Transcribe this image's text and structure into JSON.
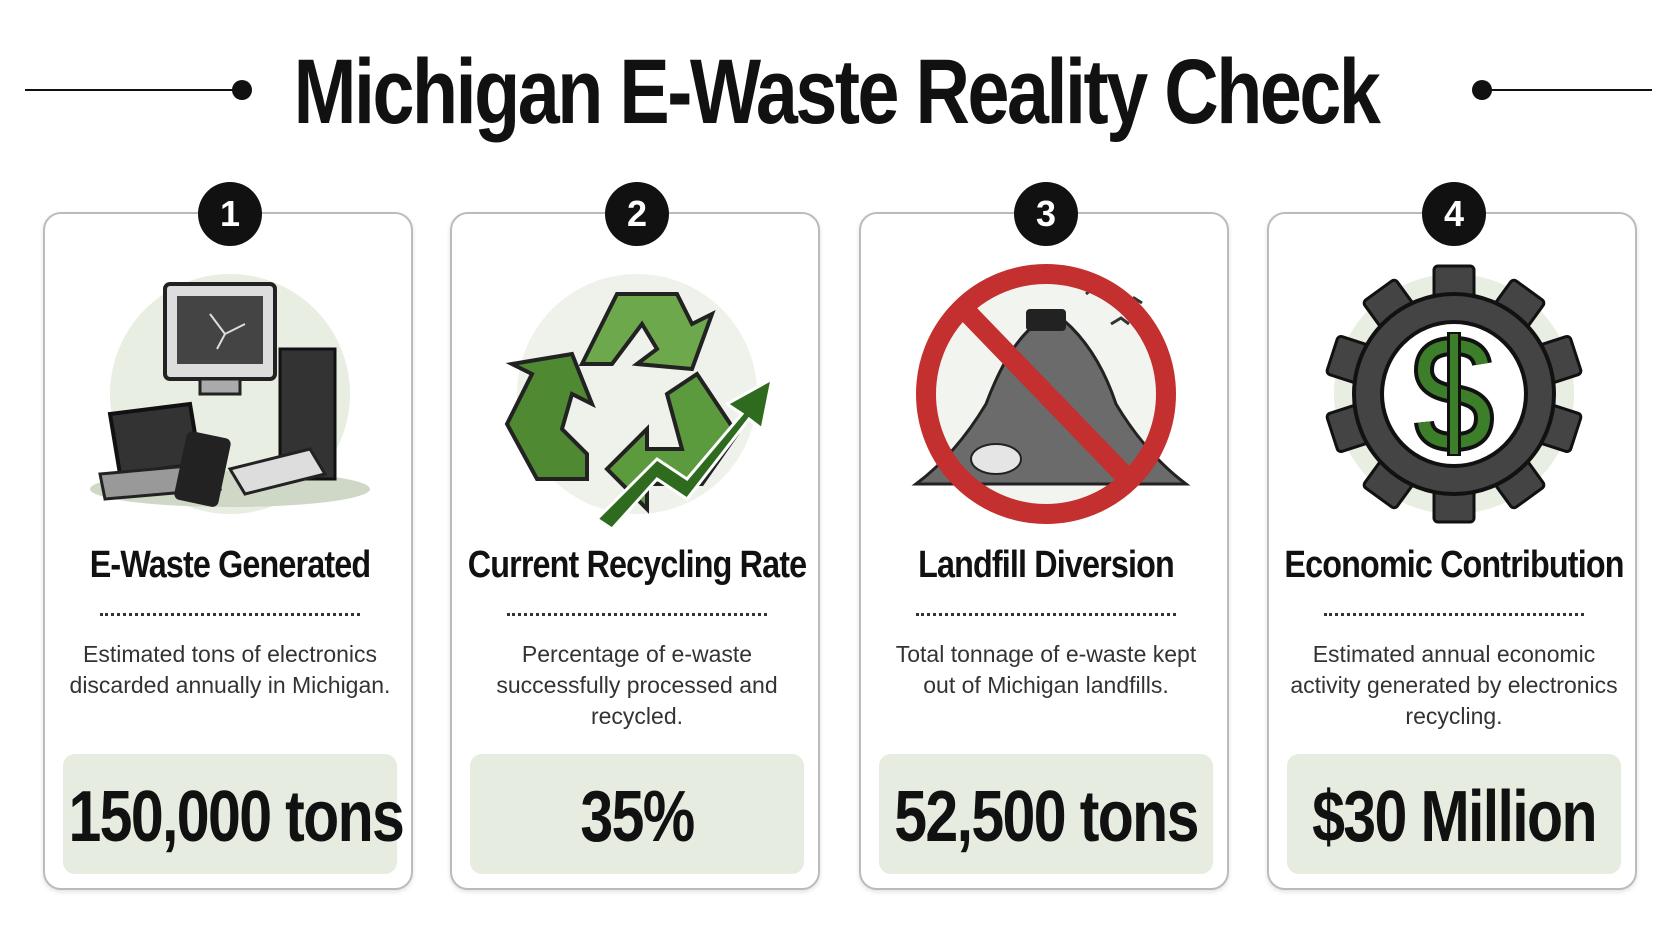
{
  "title": "Michigan E-Waste Reality Check",
  "cards": [
    {
      "number": "1",
      "heading": "E-Waste Generated",
      "description": "Estimated tons of electronics discarded annually in Michigan.",
      "stat": "150,000 tons"
    },
    {
      "number": "2",
      "heading": "Current Recycling Rate",
      "description": "Percentage of e-waste successfully processed and recycled.",
      "stat": "35%"
    },
    {
      "number": "3",
      "heading": "Landfill Diversion",
      "description": "Total tonnage of e-waste kept out of Michigan landfills.",
      "stat": "52,500 tons"
    },
    {
      "number": "4",
      "heading": "Economic Contribution",
      "description": "Estimated annual economic activity generated by electronics recycling.",
      "stat": "$30 Million"
    }
  ]
}
